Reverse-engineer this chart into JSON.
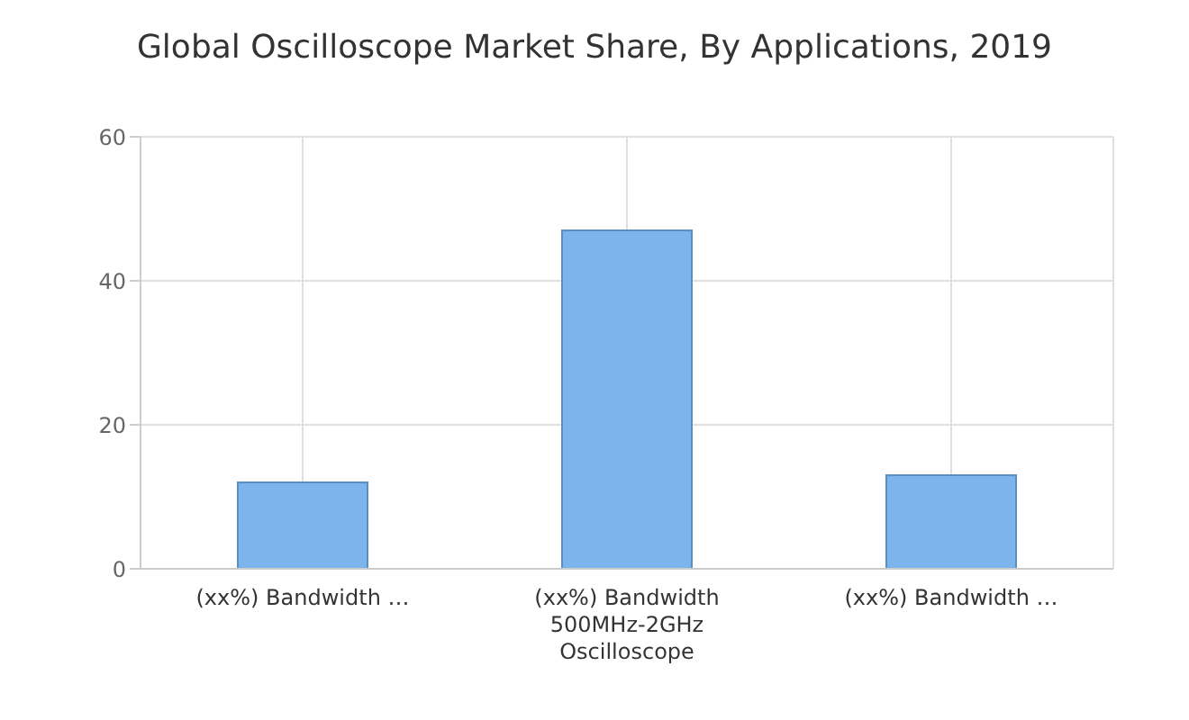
{
  "chart_data": {
    "type": "bar",
    "title": "Global Oscilloscope Market Share, By Applications, 2019",
    "categories": [
      "(xx%) Bandwidth …",
      "(xx%) Bandwidth 500MHz-2GHz Oscilloscope",
      "(xx%) Bandwidth …"
    ],
    "values": [
      12,
      47,
      13
    ],
    "color": "#7cb5ec",
    "ylim": [
      0,
      60
    ],
    "yticks": [
      0,
      20,
      40,
      60
    ],
    "grid": true
  }
}
